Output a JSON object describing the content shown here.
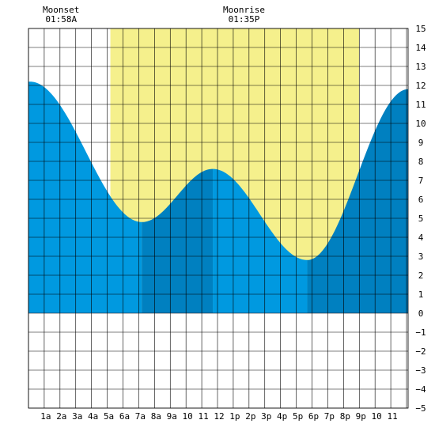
{
  "chart_data": {
    "type": "area",
    "title": "",
    "xlabel": "",
    "ylabel": "",
    "x_range_hours": [
      -0.1,
      24.0
    ],
    "ylim": [
      -5,
      15
    ],
    "grid": true,
    "x_tick_labels": [
      "1a",
      "2a",
      "3a",
      "4a",
      "5a",
      "6a",
      "7a",
      "8a",
      "9a",
      "10",
      "11",
      "12",
      "1p",
      "2p",
      "3p",
      "4p",
      "5p",
      "6p",
      "7p",
      "8p",
      "9p",
      "10",
      "11"
    ],
    "y_ticks": [
      15,
      14,
      13,
      12,
      11,
      10,
      9,
      8,
      7,
      6,
      5,
      4,
      3,
      2,
      1,
      0,
      -1,
      -2,
      -3,
      -4,
      -5
    ],
    "daylight_hours": [
      5.1,
      20.9
    ],
    "tide_extremes": [
      {
        "hour": 0.0,
        "height": 12.2,
        "kind": "high"
      },
      {
        "hour": 7.1,
        "height": 4.8,
        "kind": "low"
      },
      {
        "hour": 11.6,
        "height": 7.6,
        "kind": "high"
      },
      {
        "hour": 17.6,
        "height": 2.8,
        "kind": "low"
      },
      {
        "hour": 24.0,
        "height": 11.8,
        "kind": "high"
      }
    ],
    "colors": {
      "daylight": "#f5f08c",
      "tide": "#0099e0",
      "tide_alt": "#0080c0",
      "grid": "#000000",
      "background": "#ffffff"
    }
  },
  "moon_events": [
    {
      "name": "Moonset",
      "time": "01:58A",
      "hour": 1.97
    },
    {
      "name": "Moonrise",
      "time": "01:35P",
      "hour": 13.58
    }
  ]
}
